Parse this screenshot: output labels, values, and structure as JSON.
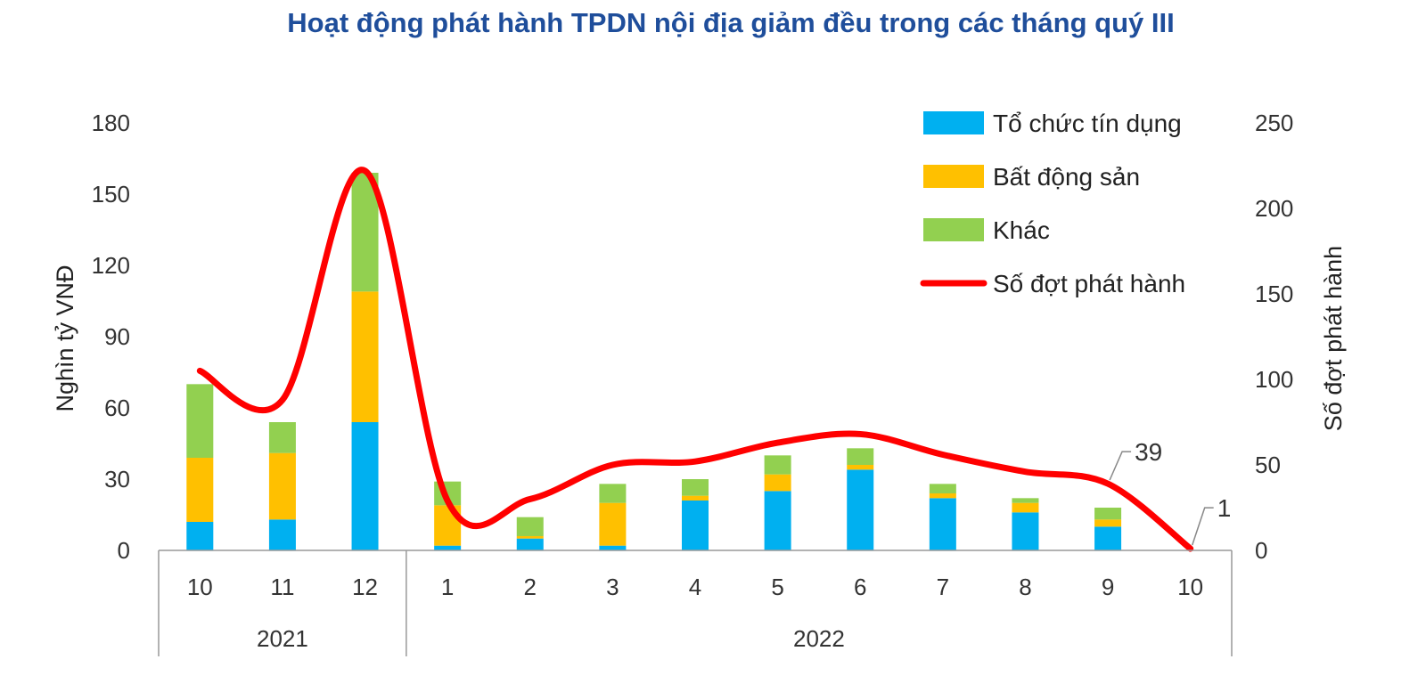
{
  "chart_data": {
    "type": "bar",
    "stacked": true,
    "title": "Hoạt động phát hành TPDN nội địa giảm đều trong các tháng quý III",
    "ylabel": "Nghìn tỷ VNĐ",
    "y2label": "Số đợt phát hành",
    "ylim": [
      0,
      180
    ],
    "y2lim": [
      0,
      250
    ],
    "yticks": [
      "0",
      "30",
      "60",
      "90",
      "120",
      "150",
      "180"
    ],
    "y2ticks": [
      "0",
      "50",
      "100",
      "150",
      "200",
      "250"
    ],
    "categories": [
      "10",
      "11",
      "12",
      "1",
      "2",
      "3",
      "4",
      "5",
      "6",
      "7",
      "8",
      "9",
      "10"
    ],
    "groups": [
      {
        "label": "2021",
        "count": 3
      },
      {
        "label": "2022",
        "count": 10
      }
    ],
    "series": [
      {
        "name": "Tổ chức tín dụng",
        "type": "bar",
        "color": "#00b0f0",
        "values": [
          12,
          13,
          54,
          2,
          5,
          2,
          21,
          25,
          34,
          22,
          16,
          10,
          0
        ]
      },
      {
        "name": "Bất động sản",
        "type": "bar",
        "color": "#ffc000",
        "values": [
          27,
          28,
          55,
          17,
          1,
          18,
          2,
          7,
          2,
          2,
          4,
          3,
          0
        ]
      },
      {
        "name": "Khác",
        "type": "bar",
        "color": "#92d050",
        "values": [
          31,
          13,
          50,
          10,
          8,
          8,
          7,
          8,
          7,
          4,
          2,
          5,
          0
        ]
      },
      {
        "name": "Số đợt phát hành",
        "type": "line",
        "axis": "right",
        "color": "#ff0000",
        "values": [
          105,
          88,
          222,
          29,
          30,
          50,
          52,
          63,
          68,
          56,
          46,
          39,
          1
        ]
      }
    ],
    "annotations": [
      {
        "index": 11,
        "text": "39"
      },
      {
        "index": 12,
        "text": "1"
      }
    ],
    "legend_position": "top-right",
    "grid": false
  }
}
